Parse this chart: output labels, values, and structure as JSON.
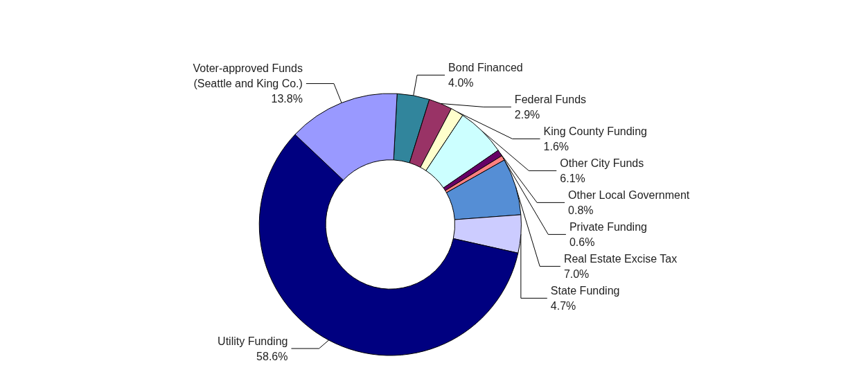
{
  "chart_data": {
    "type": "donut",
    "categories": [
      "Bond Financed",
      "Federal Funds",
      "King County Funding",
      "Other City Funds",
      "Other Local Government",
      "Private Funding",
      "Real Estate Excise Tax",
      "State Funding",
      "Utility Funding",
      "Voter-approved Funds\n(Seattle and King Co.)"
    ],
    "values": [
      4.0,
      2.9,
      1.6,
      6.1,
      0.8,
      0.6,
      7.0,
      4.7,
      58.6,
      13.8
    ],
    "value_labels": [
      "4.0%",
      "2.9%",
      "1.6%",
      "6.1%",
      "0.8%",
      "0.6%",
      "7.0%",
      "4.7%",
      "58.6%",
      "13.8%"
    ],
    "colors": [
      "#31859c",
      "#993366",
      "#ffffcc",
      "#ccffff",
      "#660066",
      "#ff8080",
      "#558ed5",
      "#ccccff",
      "#000080",
      "#9999ff"
    ],
    "legend": false
  }
}
